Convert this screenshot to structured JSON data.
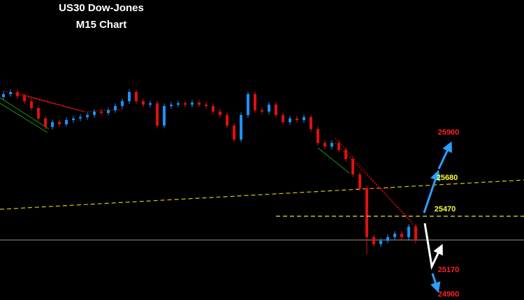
{
  "chart_data": {
    "type": "candlestick",
    "title": "US30 Dow-Jones",
    "subtitle": "M15 Chart",
    "ylim": [
      24985,
      26722
    ],
    "up_color": "#1e90ff",
    "down_color": "#e01010",
    "open": [
      26160,
      26177,
      26189,
      26165,
      26136,
      26096,
      26036,
      25987,
      26015,
      26003,
      26027,
      26036,
      26044,
      26056,
      26076,
      26068,
      26084,
      26108,
      26136,
      26189,
      26136,
      26116,
      26124,
      25995,
      26108,
      26116,
      26124,
      26116,
      26128,
      26116,
      26108,
      26076,
      26056,
      25995,
      25914,
      26056,
      26177,
      26084,
      26076,
      26116,
      26056,
      26015,
      26036,
      26027,
      26044,
      25975,
      25894,
      25874,
      25894,
      25854,
      25801,
      25712,
      25632,
      25349,
      25308,
      25328,
      25349,
      25369,
      25349,
      25410
    ],
    "high": [
      26192,
      26204,
      26204,
      26180,
      26151,
      26111,
      26051,
      26030,
      26030,
      26042,
      26051,
      26059,
      26071,
      26091,
      26091,
      26099,
      26123,
      26151,
      26204,
      26204,
      26151,
      26139,
      26139,
      26123,
      26131,
      26139,
      26139,
      26143,
      26143,
      26131,
      26123,
      26091,
      26071,
      26010,
      26071,
      26192,
      26192,
      26099,
      26131,
      26131,
      26071,
      26051,
      26051,
      26059,
      26059,
      25990,
      25909,
      25909,
      25909,
      25869,
      25816,
      25727,
      25647,
      25364,
      25343,
      25364,
      25384,
      25384,
      25425,
      25425
    ],
    "low": [
      26145,
      26162,
      26150,
      26121,
      26081,
      26021,
      25972,
      25972,
      25988,
      25988,
      26012,
      26021,
      26029,
      26041,
      26053,
      26053,
      26069,
      26093,
      26121,
      26121,
      26101,
      26101,
      25980,
      25980,
      26093,
      26101,
      26101,
      26101,
      26101,
      26093,
      26061,
      26041,
      25980,
      25899,
      25899,
      26041,
      26069,
      26061,
      26061,
      26041,
      26000,
      26000,
      26012,
      26012,
      25960,
      25879,
      25859,
      25859,
      25839,
      25786,
      25697,
      25617,
      25250,
      25293,
      25293,
      25313,
      25334,
      25334,
      25334,
      25313
    ],
    "close": [
      26177,
      26189,
      26165,
      26136,
      26096,
      26036,
      25987,
      26015,
      26003,
      26027,
      26036,
      26044,
      26056,
      26076,
      26068,
      26084,
      26108,
      26136,
      26189,
      26136,
      26116,
      26124,
      25995,
      26108,
      26116,
      26124,
      26116,
      26128,
      26116,
      26108,
      26076,
      26056,
      25995,
      25914,
      26056,
      26177,
      26084,
      26076,
      26116,
      26056,
      26015,
      26036,
      26027,
      26044,
      25975,
      25894,
      25874,
      25894,
      25854,
      25801,
      25712,
      25632,
      25349,
      25308,
      25328,
      25349,
      25369,
      25349,
      25410,
      25328
    ],
    "levels": [
      {
        "value": 25900,
        "color": "#ff2020"
      },
      {
        "value": 25680,
        "color": "#ffff33"
      },
      {
        "value": 25470,
        "color": "#ffff33"
      },
      {
        "value": 25170,
        "color": "#ff2020"
      },
      {
        "value": 24900,
        "color": "#ff2020"
      }
    ]
  }
}
